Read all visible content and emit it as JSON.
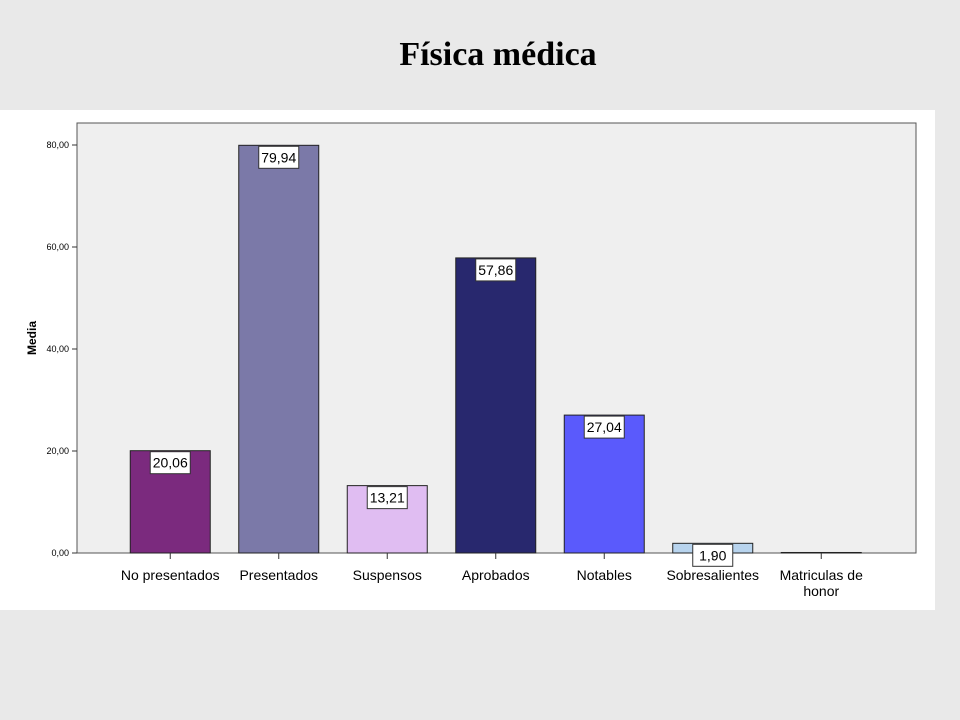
{
  "slide": {
    "title": "Física médica"
  },
  "chart_data": {
    "type": "bar",
    "title": "",
    "xlabel": "",
    "ylabel": "Media",
    "ylim": [
      0,
      80
    ],
    "yticks": [
      "0,00",
      "20,00",
      "40,00",
      "60,00",
      "80,00"
    ],
    "ytick_values": [
      0,
      20,
      40,
      60,
      80
    ],
    "grid": false,
    "categories": [
      "No presentados",
      "Presentados",
      "Suspensos",
      "Aprobados",
      "Notables",
      "Sobresalientes",
      "Matriculas de honor"
    ],
    "values": [
      20.06,
      79.94,
      13.21,
      57.86,
      27.04,
      1.9,
      0.1
    ],
    "value_labels": [
      "20,06",
      "79,94",
      "13,21",
      "57,86",
      "27,04",
      "1,90",
      ""
    ],
    "colors": [
      "#7b2a7e",
      "#7b79a8",
      "#e0bdf2",
      "#28286e",
      "#5a5afc",
      "#b8d4ee",
      "#ffffff"
    ]
  }
}
